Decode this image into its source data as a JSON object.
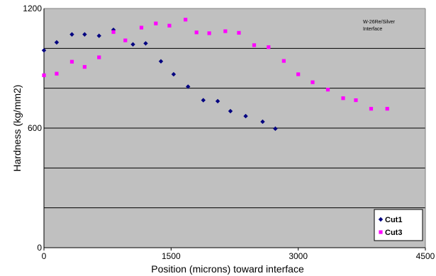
{
  "chart_data": {
    "type": "scatter",
    "title": "",
    "xlabel": "Position (microns) toward interface",
    "ylabel": "Hardness (kg/mm2)",
    "xlim": [
      0,
      4500
    ],
    "ylim": [
      0,
      1200
    ],
    "x_ticks": [
      "0",
      "1500",
      "3000",
      "4500"
    ],
    "y_ticks": [
      "0",
      "600",
      "1200"
    ],
    "y_gridlines": [
      200,
      400,
      600,
      800,
      1000
    ],
    "grid": true,
    "plot_background": "#c0c0c0",
    "annotation": [
      "W-26Re/Silver",
      "Interface"
    ],
    "legend_position": "bottom-right",
    "series": [
      {
        "name": "Cut1",
        "color": "#000080",
        "marker": "diamond",
        "points": [
          [
            0,
            990
          ],
          [
            150,
            1030
          ],
          [
            330,
            1070
          ],
          [
            480,
            1070
          ],
          [
            650,
            1063
          ],
          [
            820,
            1093
          ],
          [
            1050,
            1020
          ],
          [
            1200,
            1025
          ],
          [
            1380,
            935
          ],
          [
            1530,
            870
          ],
          [
            1700,
            808
          ],
          [
            1880,
            740
          ],
          [
            2050,
            735
          ],
          [
            2200,
            685
          ],
          [
            2380,
            660
          ],
          [
            2580,
            632
          ],
          [
            2730,
            597
          ]
        ]
      },
      {
        "name": "Cut3",
        "color": "#ff00ff",
        "marker": "square",
        "points": [
          [
            0,
            865
          ],
          [
            150,
            873
          ],
          [
            330,
            933
          ],
          [
            480,
            907
          ],
          [
            650,
            955
          ],
          [
            820,
            1082
          ],
          [
            960,
            1040
          ],
          [
            1150,
            1104
          ],
          [
            1320,
            1125
          ],
          [
            1480,
            1114
          ],
          [
            1670,
            1144
          ],
          [
            1800,
            1080
          ],
          [
            1950,
            1076
          ],
          [
            2140,
            1086
          ],
          [
            2300,
            1078
          ],
          [
            2480,
            1016
          ],
          [
            2650,
            1006
          ],
          [
            2830,
            937
          ],
          [
            3000,
            870
          ],
          [
            3170,
            830
          ],
          [
            3350,
            793
          ],
          [
            3530,
            750
          ],
          [
            3680,
            740
          ],
          [
            3860,
            697
          ],
          [
            4050,
            697
          ]
        ]
      }
    ]
  }
}
